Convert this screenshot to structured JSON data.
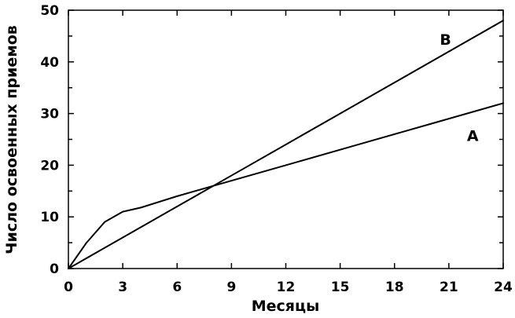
{
  "chart_data": {
    "type": "line",
    "xlabel": "Месяцы",
    "ylabel": "Число освоенных приемов",
    "xlim": [
      0,
      24
    ],
    "ylim": [
      0,
      50
    ],
    "x_ticks": [
      0,
      3,
      6,
      9,
      12,
      15,
      18,
      21,
      24
    ],
    "y_ticks": [
      0,
      10,
      20,
      30,
      40,
      50
    ],
    "grid": false,
    "series": [
      {
        "name": "A",
        "x": [
          0,
          1,
          2,
          3,
          4,
          6,
          8,
          12,
          16,
          20,
          24
        ],
        "y": [
          0,
          5,
          9,
          11,
          11.8,
          14,
          16,
          20,
          24,
          28,
          32
        ]
      },
      {
        "name": "B",
        "x": [
          0,
          3,
          6,
          9,
          12,
          15,
          18,
          21,
          24
        ],
        "y": [
          0,
          6,
          12,
          18,
          24,
          30,
          36,
          42,
          48
        ]
      }
    ]
  }
}
